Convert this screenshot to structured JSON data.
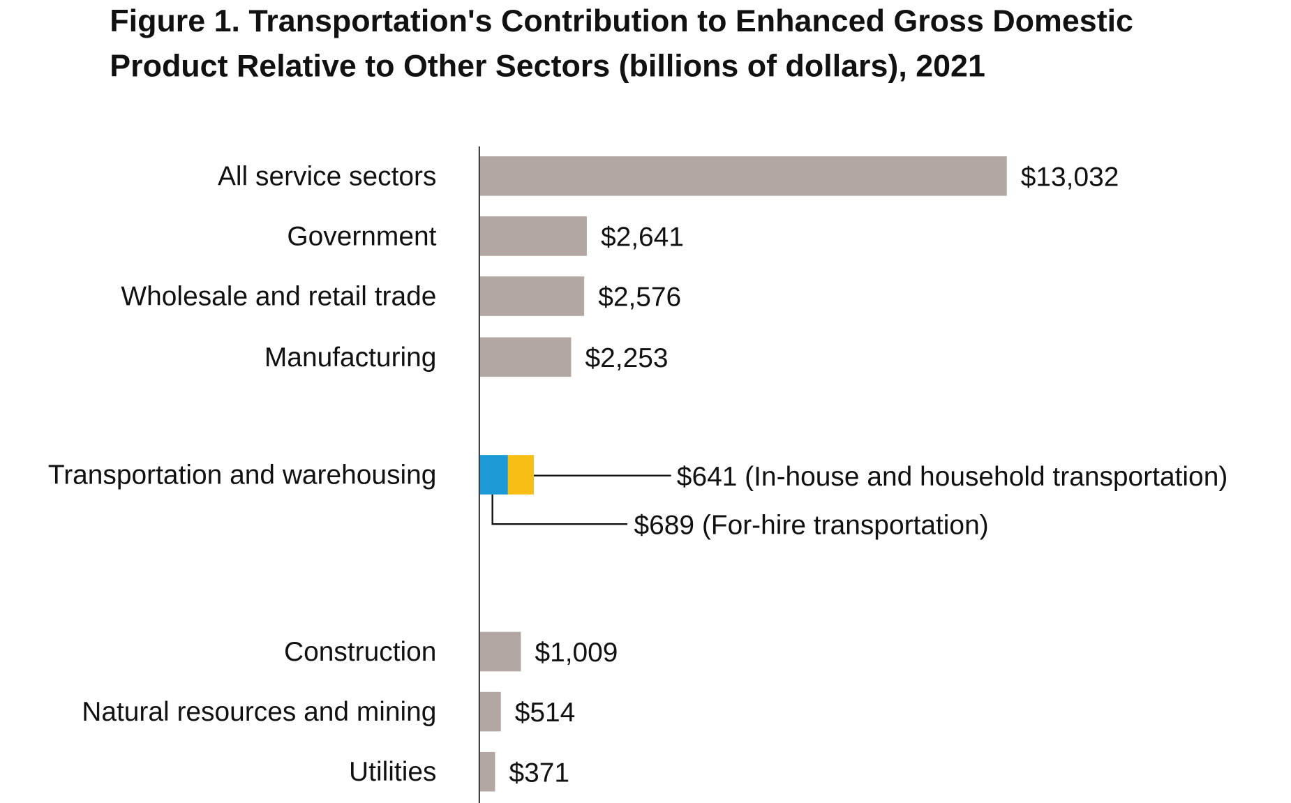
{
  "chart_data": {
    "type": "bar",
    "orientation": "horizontal",
    "title": "Figure 1. Transportation's Contribution to Enhanced Gross Domestic Product Relative to Other Sectors (billions of dollars), 2021",
    "title_lines": [
      "Figure 1. Transportation's Contribution to Enhanced Gross Domestic",
      "Product Relative to Other Sectors (billions of dollars), 2021"
    ],
    "xlabel": "",
    "ylabel": "",
    "grid": false,
    "bar_color": "#b2a7a2",
    "categories": [
      {
        "label": "All service sectors",
        "value": 13032,
        "value_label": "$13,032"
      },
      {
        "label": "Government",
        "value": 2641,
        "value_label": "$2,641"
      },
      {
        "label": "Wholesale and retail trade",
        "value": 2576,
        "value_label": "$2,576"
      },
      {
        "label": "Manufacturing",
        "value": 2253,
        "value_label": "$2,253"
      },
      {
        "label": "Transportation and warehousing",
        "stacked": true,
        "segments": [
          {
            "value": 689,
            "color": "#1b9ad6",
            "value_label": "$689 (For-hire transportation)"
          },
          {
            "value": 641,
            "color": "#f7be16",
            "value_label": "$641 (In-house and household transportation)"
          }
        ]
      },
      {
        "label": "Construction",
        "value": 1009,
        "value_label": "$1,009"
      },
      {
        "label": "Natural resources and mining",
        "value": 514,
        "value_label": "$514"
      },
      {
        "label": "Utilities",
        "value": 371,
        "value_label": "$371"
      }
    ]
  }
}
